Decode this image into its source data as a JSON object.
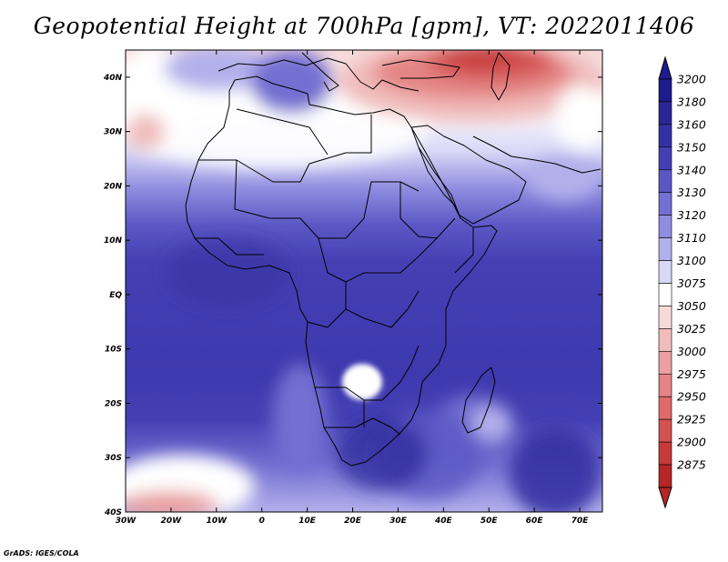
{
  "title": "Geopotential Height at 700hPa [gpm], VT: 2022011406",
  "credit": "GrADS: IGES/COLA",
  "map": {
    "lon_range": [
      -30,
      75
    ],
    "lat_range": [
      -40,
      45
    ],
    "x_ticks": [
      {
        "lon": -30,
        "label": "30W"
      },
      {
        "lon": -20,
        "label": "20W"
      },
      {
        "lon": -10,
        "label": "10W"
      },
      {
        "lon": 0,
        "label": "0"
      },
      {
        "lon": 10,
        "label": "10E"
      },
      {
        "lon": 20,
        "label": "20E"
      },
      {
        "lon": 30,
        "label": "30E"
      },
      {
        "lon": 40,
        "label": "40E"
      },
      {
        "lon": 50,
        "label": "50E"
      },
      {
        "lon": 60,
        "label": "60E"
      },
      {
        "lon": 70,
        "label": "70E"
      }
    ],
    "y_ticks": [
      {
        "lat": 40,
        "label": "40N"
      },
      {
        "lat": 30,
        "label": "30N"
      },
      {
        "lat": 20,
        "label": "20N"
      },
      {
        "lat": 10,
        "label": "10N"
      },
      {
        "lat": 0,
        "label": "EQ"
      },
      {
        "lat": -10,
        "label": "10S"
      },
      {
        "lat": -20,
        "label": "20S"
      },
      {
        "lat": -30,
        "label": "30S"
      },
      {
        "lat": -40,
        "label": "40S"
      }
    ]
  },
  "colorbar": {
    "levels": [
      {
        "label": "3200",
        "color": "#1e1b8c"
      },
      {
        "label": "3180",
        "color": "#2a2698"
      },
      {
        "label": "3160",
        "color": "#3531a4"
      },
      {
        "label": "3150",
        "color": "#4440b4"
      },
      {
        "label": "3140",
        "color": "#5a57c4"
      },
      {
        "label": "3130",
        "color": "#7370d2"
      },
      {
        "label": "3120",
        "color": "#8f8ddf"
      },
      {
        "label": "3110",
        "color": "#b2b0eb"
      },
      {
        "label": "3100",
        "color": "#d8d7f6"
      },
      {
        "label": "3075",
        "color": "#ffffff"
      },
      {
        "label": "3050",
        "color": "#f6dada"
      },
      {
        "label": "3025",
        "color": "#f0bcbc"
      },
      {
        "label": "3000",
        "color": "#eaa0a0"
      },
      {
        "label": "2975",
        "color": "#e48484"
      },
      {
        "label": "2950",
        "color": "#de6a6a"
      },
      {
        "label": "2925",
        "color": "#d45252"
      },
      {
        "label": "2900",
        "color": "#c63a3a"
      },
      {
        "label": "2875",
        "color": "#b52626"
      }
    ]
  }
}
